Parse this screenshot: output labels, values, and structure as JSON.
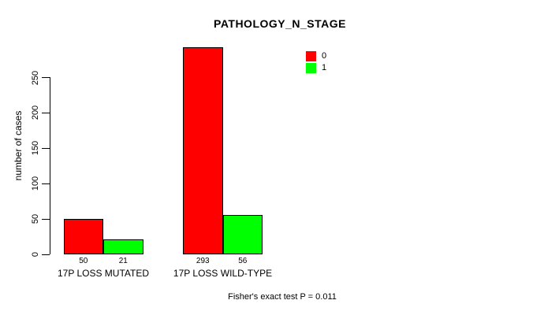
{
  "title": "PATHOLOGY_N_STAGE",
  "footer": "Fisher's exact test P = 0.011",
  "y_axis": {
    "label": "number of cases",
    "ticks": [
      0,
      50,
      100,
      150,
      200,
      250
    ]
  },
  "chart_data": {
    "type": "bar",
    "title": "PATHOLOGY_N_STAGE",
    "xlabel": "",
    "ylabel": "number of cases",
    "categories": [
      "17P LOSS MUTATED",
      "17P LOSS WILD-TYPE"
    ],
    "series": [
      {
        "name": "0",
        "color": "#FF0000",
        "values": [
          50,
          293
        ]
      },
      {
        "name": "1",
        "color": "#00FF00",
        "values": [
          21,
          56
        ]
      }
    ],
    "bar_value_labels": [
      [
        "50",
        "293"
      ],
      [
        "21",
        "56"
      ]
    ],
    "ylim": [
      0,
      250
    ],
    "grid": false,
    "legend_position": "top-right",
    "annotation": "Fisher's exact test P = 0.011",
    "background": "#FFFFFF",
    "bar_border_color": "#000000"
  }
}
